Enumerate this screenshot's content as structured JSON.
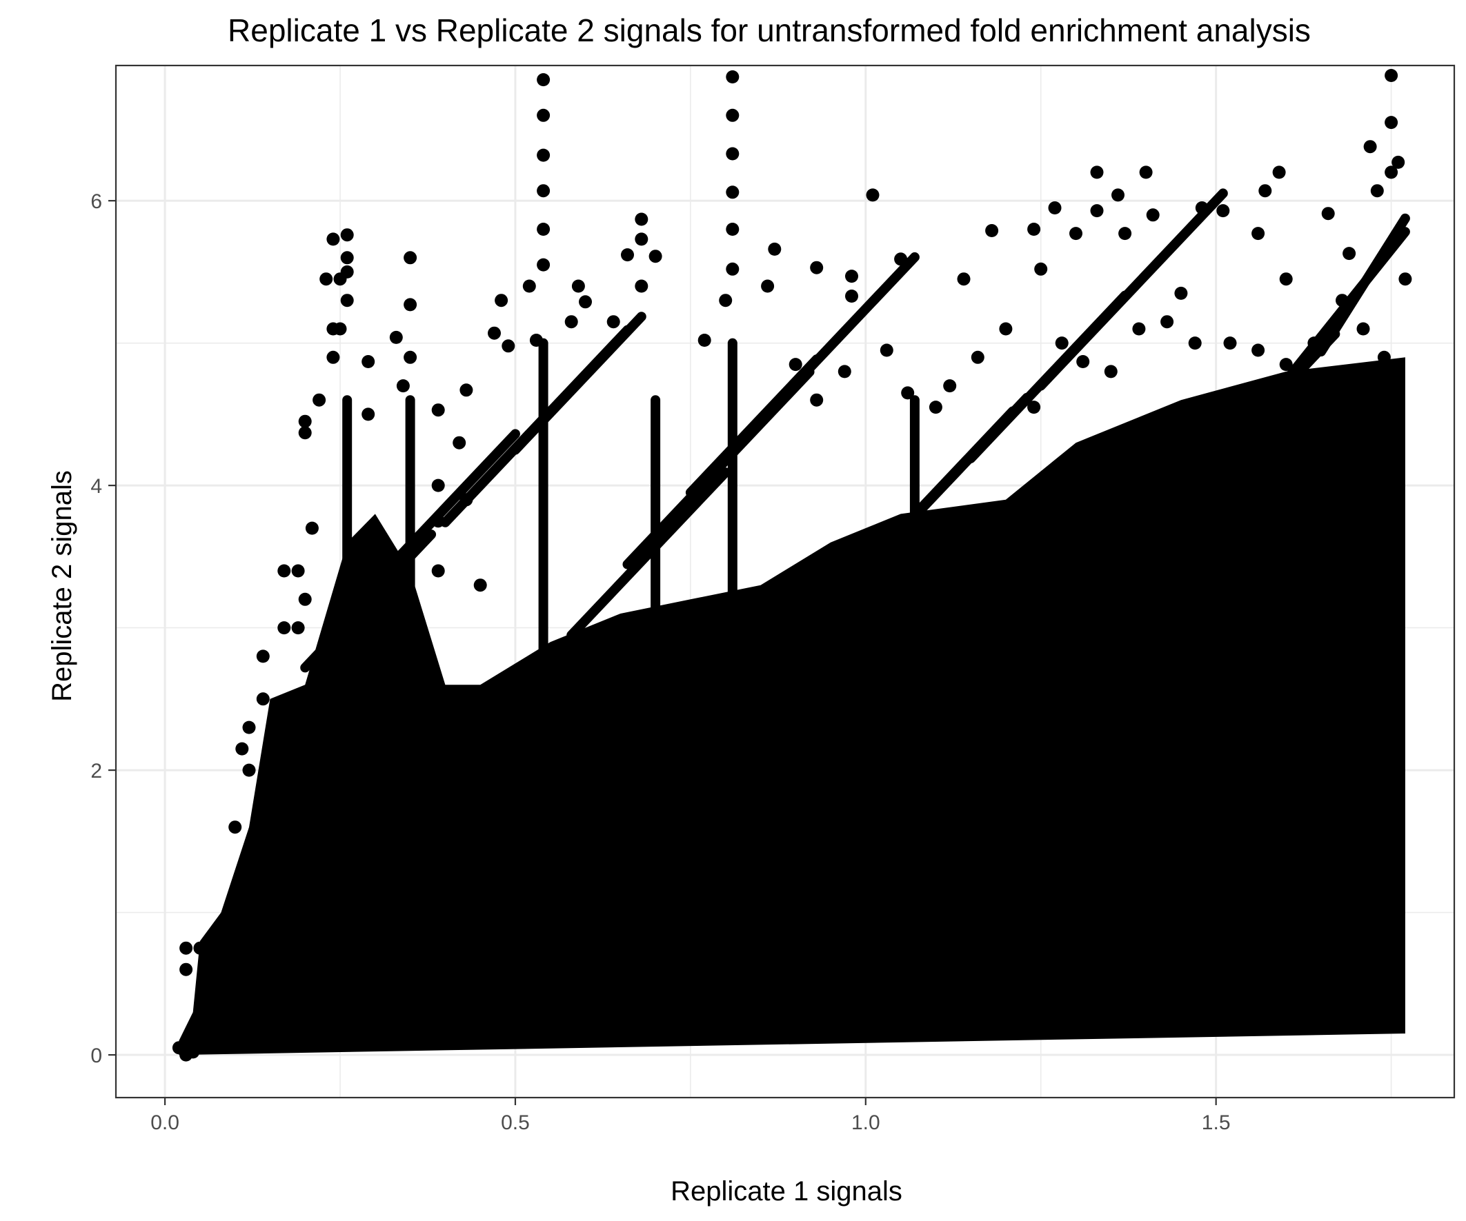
{
  "chart_data": {
    "type": "scatter",
    "title": "Replicate 1 vs Replicate 2 signals for untransformed fold enrichment analysis",
    "xlabel": "Replicate 1 signals",
    "ylabel": "Replicate 2 signals",
    "xlim": [
      -0.07,
      1.84
    ],
    "ylim": [
      -0.3,
      6.95
    ],
    "x_ticks": [
      0.0,
      0.5,
      1.0,
      1.5
    ],
    "x_tick_labels": [
      "0.0",
      "0.5",
      "1.0",
      "1.5"
    ],
    "y_ticks": [
      0,
      2,
      4,
      6
    ],
    "y_tick_labels": [
      "0",
      "2",
      "4",
      "6"
    ],
    "grid": true,
    "legend": "none",
    "point_color": "#000000",
    "panel_border_color": "#333333",
    "grid_color": "#ebebeb",
    "series": [
      {
        "points": [
          [
            0.54,
            6.85
          ],
          [
            0.54,
            6.6
          ],
          [
            0.54,
            6.32
          ],
          [
            0.54,
            6.07
          ],
          [
            0.54,
            5.8
          ],
          [
            0.54,
            5.55
          ],
          [
            0.81,
            6.87
          ],
          [
            0.81,
            6.6
          ],
          [
            0.81,
            6.33
          ],
          [
            0.81,
            6.06
          ],
          [
            0.81,
            5.8
          ],
          [
            0.81,
            5.52
          ],
          [
            1.75,
            6.88
          ],
          [
            1.75,
            6.55
          ],
          [
            1.76,
            6.27
          ],
          [
            1.75,
            6.2
          ],
          [
            1.72,
            6.38
          ],
          [
            1.73,
            6.07
          ],
          [
            1.33,
            6.2
          ],
          [
            1.4,
            6.2
          ],
          [
            1.59,
            6.2
          ],
          [
            1.57,
            6.07
          ],
          [
            1.36,
            6.04
          ],
          [
            1.01,
            6.04
          ],
          [
            1.27,
            5.95
          ],
          [
            1.33,
            5.93
          ],
          [
            1.41,
            5.9
          ],
          [
            1.48,
            5.95
          ],
          [
            1.51,
            5.93
          ],
          [
            1.66,
            5.91
          ],
          [
            0.68,
            5.87
          ],
          [
            0.68,
            5.73
          ],
          [
            0.7,
            5.61
          ],
          [
            0.66,
            5.62
          ],
          [
            0.35,
            5.6
          ],
          [
            0.87,
            5.66
          ],
          [
            0.24,
            5.73
          ],
          [
            0.26,
            5.76
          ],
          [
            0.26,
            5.6
          ],
          [
            0.25,
            5.45
          ],
          [
            0.26,
            5.3
          ],
          [
            0.25,
            5.1
          ],
          [
            1.18,
            5.79
          ],
          [
            1.24,
            5.8
          ],
          [
            1.3,
            5.77
          ],
          [
            1.37,
            5.77
          ],
          [
            1.56,
            5.77
          ],
          [
            1.69,
            5.63
          ],
          [
            0.52,
            5.4
          ],
          [
            0.59,
            5.4
          ],
          [
            0.68,
            5.4
          ],
          [
            0.86,
            5.4
          ],
          [
            0.98,
            5.47
          ],
          [
            1.05,
            5.59
          ],
          [
            0.26,
            5.5
          ],
          [
            0.23,
            5.45
          ],
          [
            0.35,
            5.27
          ],
          [
            0.48,
            5.3
          ],
          [
            0.6,
            5.29
          ],
          [
            0.8,
            5.3
          ],
          [
            0.93,
            5.53
          ],
          [
            0.98,
            5.33
          ],
          [
            1.14,
            5.45
          ],
          [
            1.25,
            5.52
          ],
          [
            1.45,
            5.35
          ],
          [
            1.6,
            5.45
          ],
          [
            0.24,
            5.1
          ],
          [
            0.33,
            5.04
          ],
          [
            0.47,
            5.07
          ],
          [
            0.53,
            5.02
          ],
          [
            0.64,
            5.15
          ],
          [
            0.77,
            5.02
          ],
          [
            0.2,
            4.45
          ],
          [
            0.24,
            4.9
          ],
          [
            0.29,
            4.87
          ],
          [
            0.35,
            4.9
          ],
          [
            0.49,
            4.98
          ],
          [
            0.58,
            5.15
          ],
          [
            0.2,
            4.37
          ],
          [
            0.22,
            4.6
          ],
          [
            0.29,
            4.5
          ],
          [
            0.34,
            4.7
          ],
          [
            0.39,
            4.53
          ],
          [
            0.43,
            4.67
          ],
          [
            0.39,
            4.0
          ],
          [
            0.39,
            3.75
          ],
          [
            0.39,
            3.4
          ],
          [
            0.42,
            4.3
          ],
          [
            0.43,
            3.9
          ],
          [
            0.45,
            3.3
          ],
          [
            0.17,
            3.4
          ],
          [
            0.19,
            3.4
          ],
          [
            0.2,
            3.2
          ],
          [
            0.21,
            3.7
          ],
          [
            0.17,
            3.0
          ],
          [
            0.19,
            3.0
          ],
          [
            0.14,
            2.8
          ],
          [
            0.14,
            2.5
          ],
          [
            0.12,
            2.3
          ],
          [
            0.11,
            2.15
          ],
          [
            0.1,
            1.6
          ],
          [
            0.12,
            2.0
          ],
          [
            0.03,
            0.75
          ],
          [
            0.03,
            0.6
          ],
          [
            0.05,
            0.75
          ],
          [
            0.02,
            0.05
          ],
          [
            0.03,
            0.0
          ],
          [
            0.04,
            0.02
          ],
          [
            0.9,
            4.85
          ],
          [
            0.93,
            4.6
          ],
          [
            0.97,
            4.8
          ],
          [
            1.03,
            4.95
          ],
          [
            1.06,
            4.65
          ],
          [
            1.1,
            4.55
          ],
          [
            1.12,
            4.7
          ],
          [
            1.16,
            4.9
          ],
          [
            1.2,
            5.1
          ],
          [
            1.24,
            4.55
          ],
          [
            1.28,
            5.0
          ],
          [
            1.31,
            4.87
          ],
          [
            1.35,
            4.8
          ],
          [
            1.39,
            5.1
          ],
          [
            1.43,
            5.15
          ],
          [
            1.47,
            5.0
          ],
          [
            1.52,
            5.0
          ],
          [
            1.56,
            4.95
          ],
          [
            1.6,
            4.85
          ],
          [
            1.64,
            5.0
          ],
          [
            1.68,
            5.3
          ],
          [
            1.71,
            5.1
          ],
          [
            1.74,
            4.9
          ],
          [
            1.77,
            5.45
          ]
        ]
      }
    ]
  }
}
